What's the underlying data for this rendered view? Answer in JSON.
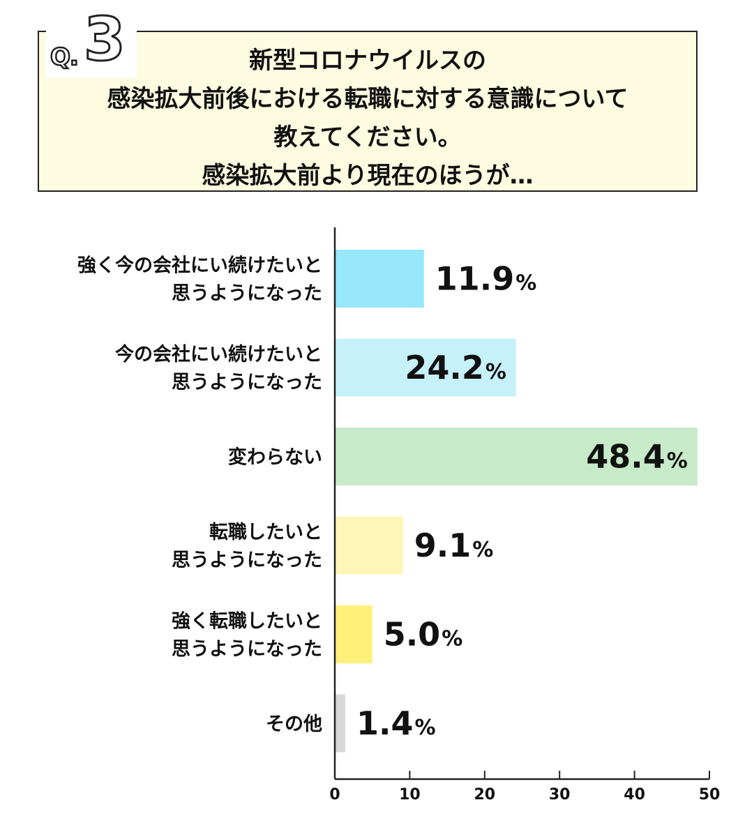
{
  "question": {
    "badge_prefix": "Q.",
    "badge_number": "3",
    "lines": [
      "新型コロナウイルスの",
      "感染拡大前後における転職に対する意識について",
      "教えてください。",
      "感染拡大前より現在のほうが…"
    ],
    "box_fill": "#fdfbe0",
    "border_color": "#222222"
  },
  "chart_data": {
    "type": "bar",
    "orientation": "horizontal",
    "categories": [
      [
        "強く今の会社にい続けたいと",
        "思うようになった"
      ],
      [
        "今の会社にい続けたいと",
        "思うようになった"
      ],
      [
        "変わらない"
      ],
      [
        "転職したいと",
        "思うようになった"
      ],
      [
        "強く転職したいと",
        "思うようになった"
      ],
      [
        "その他"
      ]
    ],
    "values": [
      11.9,
      24.2,
      48.4,
      9.1,
      5.0,
      1.4
    ],
    "value_labels": [
      "11.9",
      "24.2",
      "48.4",
      "9.1",
      "5.0",
      "1.4"
    ],
    "unit": "%",
    "label_inside": [
      false,
      true,
      true,
      false,
      false,
      false
    ],
    "colors": [
      "#96e8fa",
      "#c6f1fb",
      "#c7ebc8",
      "#fdf6b8",
      "#fef07a",
      "#d8d8d8"
    ],
    "xlim": [
      0,
      50
    ],
    "xticks": [
      0,
      10,
      20,
      30,
      40,
      50
    ],
    "grid": false
  }
}
